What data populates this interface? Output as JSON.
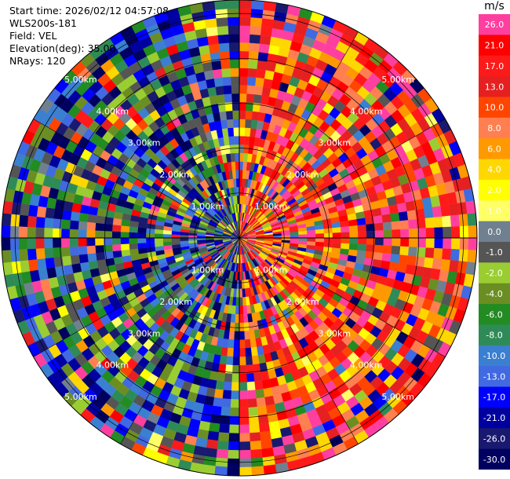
{
  "header": {
    "start_time_label": "Start time:",
    "start_time_value": "2026/02/12 04:57:08",
    "instrument": "WLS200s-181",
    "field_label": "Field:",
    "field_value": "VEL",
    "elevation_label": "Elevation(deg):",
    "elevation_value": "35.00",
    "nrays_label": "NRays:",
    "nrays_value": "120"
  },
  "colorbar": {
    "unit": "m/s",
    "ticks": [
      "26.0",
      "21.0",
      "17.0",
      "13.0",
      "10.0",
      "8.0",
      "6.0",
      "4.0",
      "2.0",
      "1.0",
      "0.0",
      "-1.0",
      "-2.0",
      "-4.0",
      "-6.0",
      "-8.0",
      "-10.0",
      "-13.0",
      "-17.0",
      "-21.0",
      "-26.0",
      "-30.0"
    ],
    "colors": [
      "#ff3fa0",
      "#ff0000",
      "#ff1a1a",
      "#e62020",
      "#ff4500",
      "#ff7f50",
      "#ff9900",
      "#ffd700",
      "#ffff00",
      "#ffff66",
      "#708090",
      "#555555",
      "#9acd32",
      "#6b8e23",
      "#228b22",
      "#2e8b57",
      "#3b7fd1",
      "#4169e1",
      "#0000ff",
      "#0000a0",
      "#191970",
      "#000060"
    ]
  },
  "chart_data": {
    "type": "heatmap",
    "subtype": "polar-ppi",
    "field": "VEL",
    "units": "m/s",
    "nrays": 120,
    "range_rings_km": [
      1,
      2,
      3,
      4,
      5
    ],
    "range_ring_labels": [
      "1.00km",
      "2.00km",
      "3.00km",
      "4.00km",
      "5.00km"
    ],
    "max_range_km": 5.3,
    "value_range": [
      -30,
      26
    ],
    "grid": true,
    "legend": "right"
  }
}
